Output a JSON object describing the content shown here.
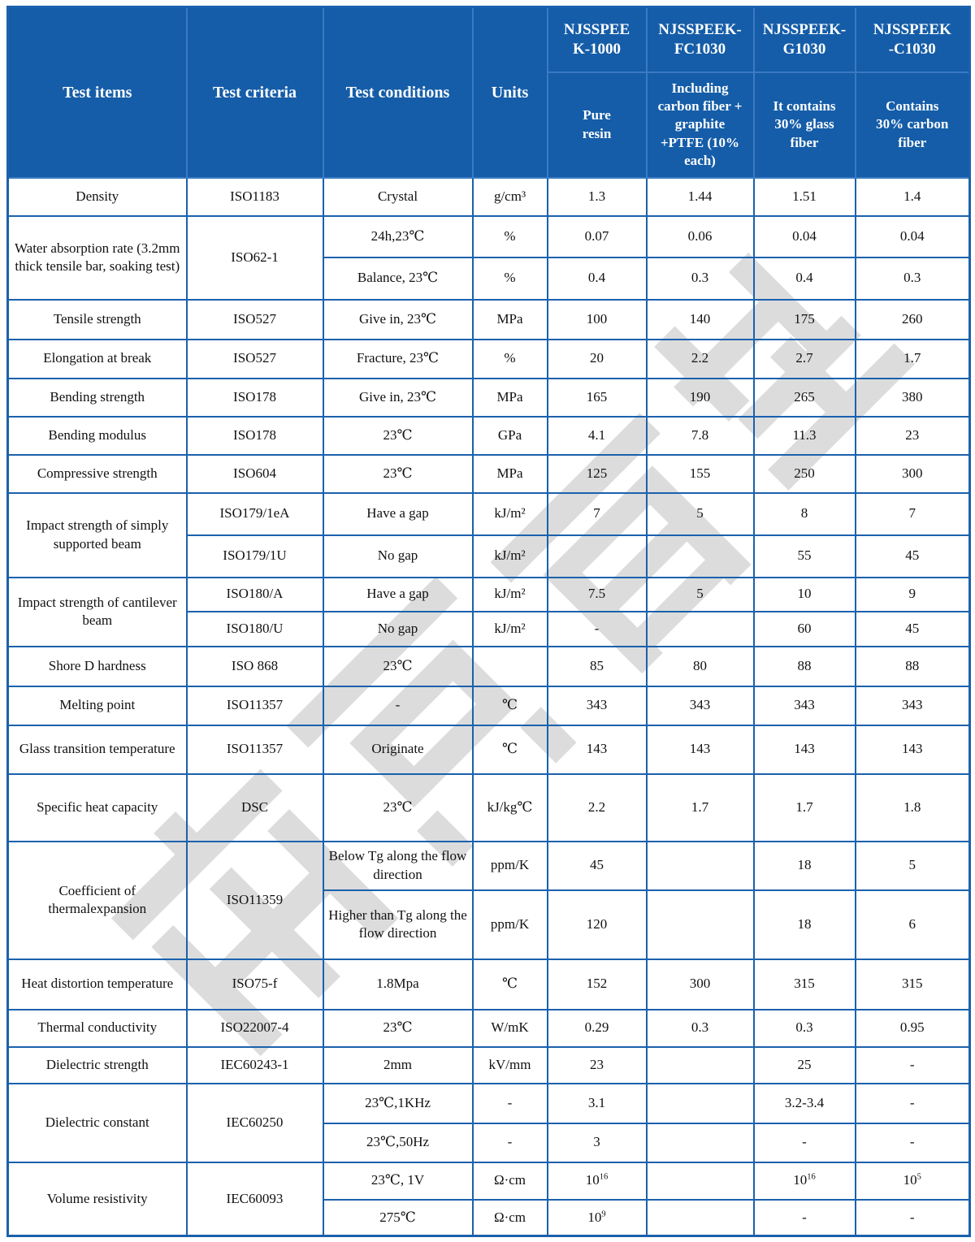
{
  "watermark": {
    "text": "南京首塑",
    "color": "#dcdcdc"
  },
  "colors": {
    "header_background": "#155da8",
    "grid_border": "#1b61ad",
    "header_text": "#ffffff",
    "body_text": "#111111"
  },
  "header": {
    "static_cols": [
      {
        "label": "Test items"
      },
      {
        "label": "Test criteria"
      },
      {
        "label": "Test conditions"
      },
      {
        "label": "Units"
      }
    ],
    "product_cols": [
      {
        "name": "NJSSPEE\nK-1000",
        "desc": "Pure\nresin"
      },
      {
        "name": "NJSSPEEK-\nFC1030",
        "desc": "Including\ncarbon fiber +\ngraphite\n+PTFE (10%\neach)"
      },
      {
        "name": "NJSSPEEK-\nG1030",
        "desc": "It contains\n30% glass\nfiber"
      },
      {
        "name": "NJSSPEEK\n-C1030",
        "desc": "Contains\n30% carbon\nfiber"
      }
    ]
  },
  "rows": [
    [
      {
        "c": 0,
        "t": "Density"
      },
      {
        "c": 1,
        "t": "ISO1183"
      },
      {
        "c": 2,
        "t": "Crystal"
      },
      {
        "c": 3,
        "t": "g/cm³"
      },
      {
        "c": 4,
        "t": "1.3"
      },
      {
        "c": 5,
        "t": "1.44"
      },
      {
        "c": 6,
        "t": "1.51"
      },
      {
        "c": 7,
        "t": "1.4"
      }
    ],
    [
      {
        "c": 0,
        "t": "Water absorption rate (3.2mm thick tensile bar, soaking test)",
        "r": 2
      },
      {
        "c": 1,
        "t": "ISO62-1",
        "r": 2
      },
      {
        "c": 2,
        "t": "24h,23℃"
      },
      {
        "c": 3,
        "t": "%"
      },
      {
        "c": 4,
        "t": "0.07"
      },
      {
        "c": 5,
        "t": "0.06"
      },
      {
        "c": 6,
        "t": "0.04"
      },
      {
        "c": 7,
        "t": "0.04"
      }
    ],
    [
      {
        "c": 2,
        "t": "Balance, 23℃"
      },
      {
        "c": 3,
        "t": "%"
      },
      {
        "c": 4,
        "t": "0.4"
      },
      {
        "c": 5,
        "t": "0.3"
      },
      {
        "c": 6,
        "t": "0.4"
      },
      {
        "c": 7,
        "t": "0.3"
      }
    ],
    [
      {
        "c": 0,
        "t": "Tensile strength"
      },
      {
        "c": 1,
        "t": "ISO527"
      },
      {
        "c": 2,
        "t": "Give in, 23℃"
      },
      {
        "c": 3,
        "t": "MPa"
      },
      {
        "c": 4,
        "t": "100"
      },
      {
        "c": 5,
        "t": "140"
      },
      {
        "c": 6,
        "t": "175"
      },
      {
        "c": 7,
        "t": "260"
      }
    ],
    [
      {
        "c": 0,
        "t": "Elongation at break"
      },
      {
        "c": 1,
        "t": "ISO527"
      },
      {
        "c": 2,
        "t": "Fracture, 23℃"
      },
      {
        "c": 3,
        "t": "%"
      },
      {
        "c": 4,
        "t": "20"
      },
      {
        "c": 5,
        "t": "2.2"
      },
      {
        "c": 6,
        "t": "2.7"
      },
      {
        "c": 7,
        "t": "1.7"
      }
    ],
    [
      {
        "c": 0,
        "t": "Bending strength"
      },
      {
        "c": 1,
        "t": "ISO178"
      },
      {
        "c": 2,
        "t": "Give in, 23℃"
      },
      {
        "c": 3,
        "t": "MPa"
      },
      {
        "c": 4,
        "t": "165"
      },
      {
        "c": 5,
        "t": "190"
      },
      {
        "c": 6,
        "t": "265"
      },
      {
        "c": 7,
        "t": "380"
      }
    ],
    [
      {
        "c": 0,
        "t": "Bending modulus"
      },
      {
        "c": 1,
        "t": "ISO178"
      },
      {
        "c": 2,
        "t": "23℃"
      },
      {
        "c": 3,
        "t": "GPa"
      },
      {
        "c": 4,
        "t": "4.1"
      },
      {
        "c": 5,
        "t": "7.8"
      },
      {
        "c": 6,
        "t": "11.3"
      },
      {
        "c": 7,
        "t": "23"
      }
    ],
    [
      {
        "c": 0,
        "t": "Compressive strength"
      },
      {
        "c": 1,
        "t": "ISO604"
      },
      {
        "c": 2,
        "t": "23℃"
      },
      {
        "c": 3,
        "t": "MPa"
      },
      {
        "c": 4,
        "t": "125"
      },
      {
        "c": 5,
        "t": "155"
      },
      {
        "c": 6,
        "t": "250"
      },
      {
        "c": 7,
        "t": "300"
      }
    ],
    [
      {
        "c": 0,
        "t": "Impact strength of simply supported beam",
        "r": 2
      },
      {
        "c": 1,
        "t": "ISO179/1eA"
      },
      {
        "c": 2,
        "t": "Have a gap"
      },
      {
        "c": 3,
        "t": "kJ/m²"
      },
      {
        "c": 4,
        "t": "7"
      },
      {
        "c": 5,
        "t": "5"
      },
      {
        "c": 6,
        "t": "8"
      },
      {
        "c": 7,
        "t": "7"
      }
    ],
    [
      {
        "c": 1,
        "t": "ISO179/1U"
      },
      {
        "c": 2,
        "t": "No gap"
      },
      {
        "c": 3,
        "t": "kJ/m²"
      },
      {
        "c": 4,
        "t": ""
      },
      {
        "c": 5,
        "t": ""
      },
      {
        "c": 6,
        "t": "55"
      },
      {
        "c": 7,
        "t": "45"
      }
    ],
    [
      {
        "c": 0,
        "t": "Impact strength of cantilever beam",
        "r": 2
      },
      {
        "c": 1,
        "t": "ISO180/A"
      },
      {
        "c": 2,
        "t": "Have a gap"
      },
      {
        "c": 3,
        "t": "kJ/m²"
      },
      {
        "c": 4,
        "t": "7.5"
      },
      {
        "c": 5,
        "t": "5"
      },
      {
        "c": 6,
        "t": "10"
      },
      {
        "c": 7,
        "t": "9"
      }
    ],
    [
      {
        "c": 1,
        "t": "ISO180/U"
      },
      {
        "c": 2,
        "t": "No gap"
      },
      {
        "c": 3,
        "t": "kJ/m²"
      },
      {
        "c": 4,
        "t": "-"
      },
      {
        "c": 5,
        "t": ""
      },
      {
        "c": 6,
        "t": "60"
      },
      {
        "c": 7,
        "t": "45"
      }
    ],
    [
      {
        "c": 0,
        "t": "Shore D hardness"
      },
      {
        "c": 1,
        "t": "ISO 868"
      },
      {
        "c": 2,
        "t": "23℃"
      },
      {
        "c": 3,
        "t": ""
      },
      {
        "c": 4,
        "t": "85"
      },
      {
        "c": 5,
        "t": "80"
      },
      {
        "c": 6,
        "t": "88"
      },
      {
        "c": 7,
        "t": "88"
      }
    ],
    [
      {
        "c": 0,
        "t": "Melting point"
      },
      {
        "c": 1,
        "t": "ISO11357"
      },
      {
        "c": 2,
        "t": "-"
      },
      {
        "c": 3,
        "t": "℃"
      },
      {
        "c": 4,
        "t": "343"
      },
      {
        "c": 5,
        "t": "343"
      },
      {
        "c": 6,
        "t": "343"
      },
      {
        "c": 7,
        "t": "343"
      }
    ],
    [
      {
        "c": 0,
        "t": "Glass transition temperature"
      },
      {
        "c": 1,
        "t": "ISO11357"
      },
      {
        "c": 2,
        "t": "Originate"
      },
      {
        "c": 3,
        "t": "℃"
      },
      {
        "c": 4,
        "t": "143"
      },
      {
        "c": 5,
        "t": "143"
      },
      {
        "c": 6,
        "t": "143"
      },
      {
        "c": 7,
        "t": "143"
      }
    ],
    [
      {
        "c": 0,
        "t": "Specific heat capacity"
      },
      {
        "c": 1,
        "t": "DSC"
      },
      {
        "c": 2,
        "t": "23℃"
      },
      {
        "c": 3,
        "t": "kJ/kg℃"
      },
      {
        "c": 4,
        "t": "2.2"
      },
      {
        "c": 5,
        "t": "1.7"
      },
      {
        "c": 6,
        "t": "1.7"
      },
      {
        "c": 7,
        "t": "1.8"
      }
    ],
    [
      {
        "c": 0,
        "t": "Coefficient of thermalexpansion",
        "r": 2
      },
      {
        "c": 1,
        "t": "ISO11359",
        "r": 2
      },
      {
        "c": 2,
        "t": "Below Tg along the flow direction"
      },
      {
        "c": 3,
        "t": "ppm/K"
      },
      {
        "c": 4,
        "t": "45"
      },
      {
        "c": 5,
        "t": ""
      },
      {
        "c": 6,
        "t": "18"
      },
      {
        "c": 7,
        "t": "5"
      }
    ],
    [
      {
        "c": 2,
        "t": "Higher than Tg along the flow direction"
      },
      {
        "c": 3,
        "t": "ppm/K"
      },
      {
        "c": 4,
        "t": "120"
      },
      {
        "c": 5,
        "t": ""
      },
      {
        "c": 6,
        "t": "18"
      },
      {
        "c": 7,
        "t": "6"
      }
    ],
    [
      {
        "c": 0,
        "t": "Heat distortion temperature"
      },
      {
        "c": 1,
        "t": "ISO75-f"
      },
      {
        "c": 2,
        "t": "1.8Mpa"
      },
      {
        "c": 3,
        "t": "℃"
      },
      {
        "c": 4,
        "t": "152"
      },
      {
        "c": 5,
        "t": "300"
      },
      {
        "c": 6,
        "t": "315"
      },
      {
        "c": 7,
        "t": "315"
      }
    ],
    [
      {
        "c": 0,
        "t": "Thermal conductivity"
      },
      {
        "c": 1,
        "t": "ISO22007-4"
      },
      {
        "c": 2,
        "t": "23℃"
      },
      {
        "c": 3,
        "t": "W/mK"
      },
      {
        "c": 4,
        "t": "0.29"
      },
      {
        "c": 5,
        "t": "0.3"
      },
      {
        "c": 6,
        "t": "0.3"
      },
      {
        "c": 7,
        "t": "0.95"
      }
    ],
    [
      {
        "c": 0,
        "t": "Dielectric strength"
      },
      {
        "c": 1,
        "t": "IEC60243-1"
      },
      {
        "c": 2,
        "t": "2mm"
      },
      {
        "c": 3,
        "t": "kV/mm"
      },
      {
        "c": 4,
        "t": "23"
      },
      {
        "c": 5,
        "t": ""
      },
      {
        "c": 6,
        "t": "25"
      },
      {
        "c": 7,
        "t": "-"
      }
    ],
    [
      {
        "c": 0,
        "t": "Dielectric constant",
        "r": 2
      },
      {
        "c": 1,
        "t": "IEC60250",
        "r": 2
      },
      {
        "c": 2,
        "t": "23℃,1KHz"
      },
      {
        "c": 3,
        "t": "-"
      },
      {
        "c": 4,
        "t": "3.1"
      },
      {
        "c": 5,
        "t": ""
      },
      {
        "c": 6,
        "t": "3.2-3.4"
      },
      {
        "c": 7,
        "t": "-"
      }
    ],
    [
      {
        "c": 2,
        "t": "23℃,50Hz"
      },
      {
        "c": 3,
        "t": "-"
      },
      {
        "c": 4,
        "t": "3"
      },
      {
        "c": 5,
        "t": ""
      },
      {
        "c": 6,
        "t": "-"
      },
      {
        "c": 7,
        "t": "-"
      }
    ],
    [
      {
        "c": 0,
        "t": "Volume resistivity",
        "r": 2
      },
      {
        "c": 1,
        "t": "IEC60093",
        "r": 2
      },
      {
        "c": 2,
        "t": "23℃, 1V"
      },
      {
        "c": 3,
        "t": "Ω·cm"
      },
      {
        "c": 4,
        "t": "10^16"
      },
      {
        "c": 5,
        "t": ""
      },
      {
        "c": 6,
        "t": "10^16"
      },
      {
        "c": 7,
        "t": "10^5"
      }
    ],
    [
      {
        "c": 2,
        "t": "275℃"
      },
      {
        "c": 3,
        "t": "Ω·cm"
      },
      {
        "c": 4,
        "t": "10^9"
      },
      {
        "c": 5,
        "t": ""
      },
      {
        "c": 6,
        "t": "-"
      },
      {
        "c": 7,
        "t": "-"
      }
    ]
  ]
}
